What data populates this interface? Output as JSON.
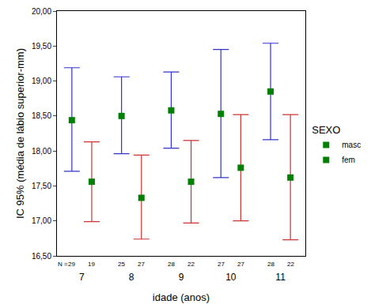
{
  "chart_data": {
    "type": "errorbar",
    "x_label": "idade (anos)",
    "y_label": "IC 95% (média de lábio superior-mm)",
    "categories": [
      "7",
      "8",
      "9",
      "10",
      "11"
    ],
    "color": "#008000",
    "marker": "square",
    "legend_title": "SEXO",
    "legend": "right",
    "grid": false,
    "n_label": "N =",
    "ylim": [
      16.5,
      20
    ],
    "yticks": [
      {
        "value": 16.5,
        "label": "16,50"
      },
      {
        "value": 17,
        "label": "17,00"
      },
      {
        "value": 17.5,
        "label": "17,50"
      },
      {
        "value": 18,
        "label": "18,00"
      },
      {
        "value": 18.5,
        "label": "18,50"
      },
      {
        "value": 19,
        "label": "19,00"
      },
      {
        "value": 19.5,
        "label": "19,50"
      },
      {
        "value": 20,
        "label": "20,00"
      }
    ],
    "series": [
      {
        "name": "masc",
        "color": "#3333cc",
        "values": [
          18.44,
          18.5,
          18.58,
          18.53,
          18.85
        ],
        "ci_lower": [
          17.71,
          17.96,
          18.04,
          17.62,
          18.16
        ],
        "ci_upper": [
          19.19,
          19.06,
          19.13,
          19.45,
          19.54
        ],
        "n": [
          29,
          25,
          28,
          27,
          28
        ]
      },
      {
        "name": "fem",
        "color": "#cc3333",
        "values": [
          17.56,
          17.33,
          17.56,
          17.76,
          17.62
        ],
        "ci_lower": [
          16.99,
          16.74,
          16.97,
          17.0,
          16.73
        ],
        "ci_upper": [
          18.13,
          17.94,
          18.15,
          18.52,
          18.52
        ],
        "n": [
          19,
          27,
          22,
          27,
          22
        ]
      }
    ]
  }
}
